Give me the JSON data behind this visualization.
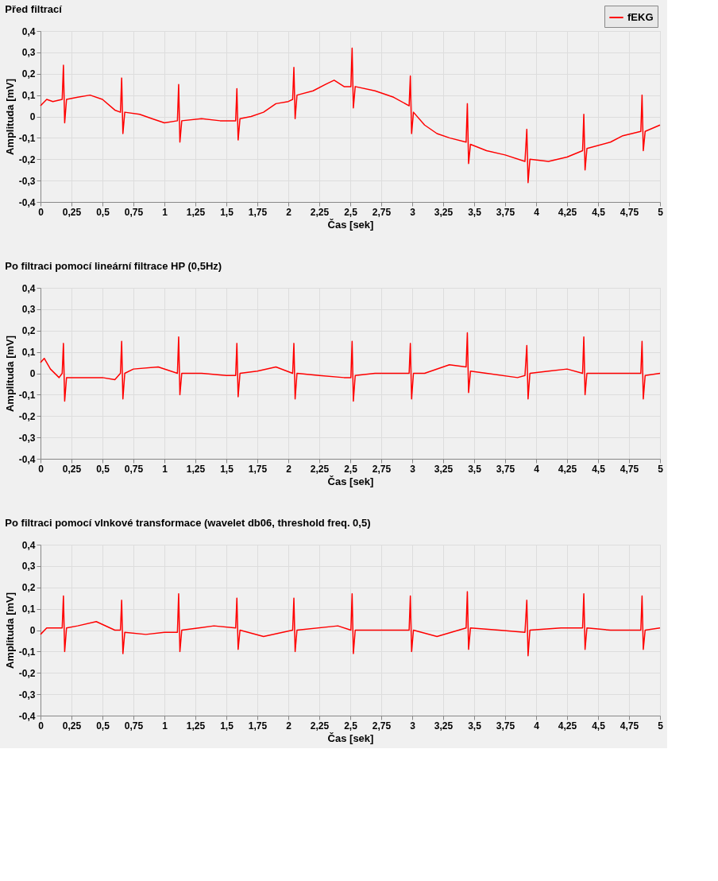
{
  "chart_data": [
    {
      "type": "line",
      "title": "Před filtrací",
      "xlabel": "Čas [sek]",
      "ylabel": "Amplituda [mV]",
      "legend": "top right",
      "grid": true,
      "line_style": "solid",
      "marker": "none",
      "xlim": [
        0,
        5
      ],
      "ylim": [
        -0.4,
        0.4
      ],
      "xticks": [
        0,
        {
          "value": 0.25,
          "label": "0,25"
        },
        {
          "value": 0.5,
          "label": "0,5"
        },
        {
          "value": 0.75,
          "label": "0,75"
        },
        1,
        {
          "value": 1.25,
          "label": "1,25"
        },
        {
          "value": 1.5,
          "label": "1,5"
        },
        {
          "value": 1.75,
          "label": "1,75"
        },
        2,
        {
          "value": 2.25,
          "label": "2,25"
        },
        {
          "value": 2.5,
          "label": "2,5"
        },
        {
          "value": 2.75,
          "label": "2,75"
        },
        3,
        {
          "value": 3.25,
          "label": "3,25"
        },
        {
          "value": 3.5,
          "label": "3,5"
        },
        {
          "value": 3.75,
          "label": "3,75"
        },
        4,
        {
          "value": 4.25,
          "label": "4,25"
        },
        {
          "value": 4.5,
          "label": "4,5"
        },
        {
          "value": 4.75,
          "label": "4,75"
        },
        5
      ],
      "yticks": [
        {
          "value": -0.4,
          "label": "-0,4"
        },
        {
          "value": -0.3,
          "label": "-0,3"
        },
        {
          "value": -0.2,
          "label": "-0,2"
        },
        {
          "value": -0.1,
          "label": "-0,1"
        },
        0,
        {
          "value": 0.1,
          "label": "0,1"
        },
        {
          "value": 0.2,
          "label": "0,2"
        },
        {
          "value": 0.3,
          "label": "0,3"
        },
        {
          "value": 0.4,
          "label": "0,4"
        }
      ],
      "series": [
        {
          "name": "fEKG",
          "color": "#ff0000",
          "x": [
            0,
            0.05,
            0.1,
            0.175,
            0.185,
            0.195,
            0.21,
            0.3,
            0.4,
            0.5,
            0.6,
            0.645,
            0.655,
            0.665,
            0.68,
            0.8,
            0.9,
            1.0,
            1.105,
            1.115,
            1.125,
            1.14,
            1.3,
            1.45,
            1.575,
            1.585,
            1.595,
            1.61,
            1.7,
            1.8,
            1.9,
            2.0,
            2.035,
            2.045,
            2.055,
            2.07,
            2.2,
            2.3,
            2.37,
            2.45,
            2.505,
            2.515,
            2.525,
            2.54,
            2.7,
            2.85,
            2.975,
            2.985,
            2.995,
            3.01,
            3.1,
            3.2,
            3.3,
            3.435,
            3.445,
            3.455,
            3.47,
            3.6,
            3.75,
            3.91,
            3.925,
            3.935,
            3.95,
            4.1,
            4.25,
            4.375,
            4.385,
            4.395,
            4.41,
            4.6,
            4.7,
            4.845,
            4.855,
            4.865,
            4.88,
            5.0
          ],
          "values": [
            0.05,
            0.08,
            0.07,
            0.08,
            0.24,
            -0.03,
            0.08,
            0.09,
            0.1,
            0.08,
            0.03,
            0.02,
            0.18,
            -0.08,
            0.02,
            0.01,
            -0.01,
            -0.03,
            -0.02,
            0.15,
            -0.12,
            -0.02,
            -0.01,
            -0.02,
            -0.02,
            0.13,
            -0.11,
            -0.01,
            0.0,
            0.02,
            0.06,
            0.07,
            0.08,
            0.23,
            -0.01,
            0.1,
            0.12,
            0.15,
            0.17,
            0.14,
            0.14,
            0.32,
            0.04,
            0.14,
            0.12,
            0.09,
            0.05,
            0.19,
            -0.08,
            0.02,
            -0.04,
            -0.08,
            -0.1,
            -0.12,
            0.06,
            -0.22,
            -0.13,
            -0.16,
            -0.18,
            -0.21,
            -0.06,
            -0.31,
            -0.2,
            -0.21,
            -0.19,
            -0.16,
            0.01,
            -0.25,
            -0.15,
            -0.12,
            -0.09,
            -0.07,
            0.1,
            -0.16,
            -0.07,
            -0.04
          ]
        }
      ]
    },
    {
      "type": "line",
      "title": "Po filtraci pomocí lineární filtrace HP (0,5Hz)",
      "xlabel": "Čas [sek]",
      "ylabel": "Amplituda [mV]",
      "legend": "top right",
      "grid": true,
      "line_style": "solid",
      "marker": "none",
      "xlim": [
        0,
        5
      ],
      "ylim": [
        -0.4,
        0.4
      ],
      "xticks": [
        0,
        {
          "value": 0.25,
          "label": "0,25"
        },
        {
          "value": 0.5,
          "label": "0,5"
        },
        {
          "value": 0.75,
          "label": "0,75"
        },
        1,
        {
          "value": 1.25,
          "label": "1,25"
        },
        {
          "value": 1.5,
          "label": "1,5"
        },
        {
          "value": 1.75,
          "label": "1,75"
        },
        2,
        {
          "value": 2.25,
          "label": "2,25"
        },
        {
          "value": 2.5,
          "label": "2,5"
        },
        {
          "value": 2.75,
          "label": "2,75"
        },
        3,
        {
          "value": 3.25,
          "label": "3,25"
        },
        {
          "value": 3.5,
          "label": "3,5"
        },
        {
          "value": 3.75,
          "label": "3,75"
        },
        4,
        {
          "value": 4.25,
          "label": "4,25"
        },
        {
          "value": 4.5,
          "label": "4,5"
        },
        {
          "value": 4.75,
          "label": "4,75"
        },
        5
      ],
      "yticks": [
        {
          "value": -0.4,
          "label": "-0,4"
        },
        {
          "value": -0.3,
          "label": "-0,3"
        },
        {
          "value": -0.2,
          "label": "-0,2"
        },
        {
          "value": -0.1,
          "label": "-0,1"
        },
        0,
        {
          "value": 0.1,
          "label": "0,1"
        },
        {
          "value": 0.2,
          "label": "0,2"
        },
        {
          "value": 0.3,
          "label": "0,3"
        },
        {
          "value": 0.4,
          "label": "0,4"
        }
      ],
      "series": [
        {
          "name": "fEKG",
          "color": "#ff0000",
          "x": [
            0,
            0.03,
            0.08,
            0.15,
            0.175,
            0.185,
            0.195,
            0.21,
            0.3,
            0.5,
            0.6,
            0.645,
            0.655,
            0.665,
            0.68,
            0.75,
            0.95,
            1.105,
            1.115,
            1.125,
            1.14,
            1.3,
            1.5,
            1.575,
            1.585,
            1.595,
            1.61,
            1.75,
            1.9,
            2.035,
            2.045,
            2.055,
            2.07,
            2.25,
            2.45,
            2.505,
            2.515,
            2.525,
            2.54,
            2.7,
            2.9,
            2.975,
            2.985,
            2.995,
            3.01,
            3.1,
            3.3,
            3.435,
            3.445,
            3.455,
            3.47,
            3.6,
            3.85,
            3.91,
            3.925,
            3.935,
            3.95,
            4.1,
            4.25,
            4.375,
            4.385,
            4.395,
            4.41,
            4.5,
            4.7,
            4.845,
            4.855,
            4.865,
            4.88,
            5.0
          ],
          "values": [
            0.05,
            0.07,
            0.02,
            -0.02,
            0.0,
            0.14,
            -0.13,
            -0.02,
            -0.02,
            -0.02,
            -0.03,
            0.0,
            0.15,
            -0.12,
            0.0,
            0.02,
            0.03,
            0.0,
            0.17,
            -0.1,
            0.0,
            0.0,
            -0.01,
            -0.01,
            0.14,
            -0.11,
            0.0,
            0.01,
            0.03,
            0.0,
            0.14,
            -0.12,
            0.0,
            -0.01,
            -0.02,
            -0.02,
            0.15,
            -0.13,
            -0.01,
            0.0,
            0.0,
            0.0,
            0.14,
            -0.12,
            0.0,
            0.0,
            0.04,
            0.03,
            0.19,
            -0.09,
            0.01,
            0.0,
            -0.02,
            -0.01,
            0.13,
            -0.12,
            0.0,
            0.01,
            0.02,
            0.0,
            0.17,
            -0.1,
            0.0,
            0.0,
            0.0,
            0.0,
            0.15,
            -0.12,
            -0.01,
            0.0
          ]
        }
      ]
    },
    {
      "type": "line",
      "title": "Po filtraci pomocí vlnkové transformace (wavelet db06, threshold freq. 0,5)",
      "xlabel": "Čas [sek]",
      "ylabel": "Amplituda [mV]",
      "legend": "top right",
      "grid": true,
      "line_style": "solid",
      "marker": "none",
      "xlim": [
        0,
        5
      ],
      "ylim": [
        -0.4,
        0.4
      ],
      "xticks": [
        0,
        {
          "value": 0.25,
          "label": "0,25"
        },
        {
          "value": 0.5,
          "label": "0,5"
        },
        {
          "value": 0.75,
          "label": "0,75"
        },
        1,
        {
          "value": 1.25,
          "label": "1,25"
        },
        {
          "value": 1.5,
          "label": "1,5"
        },
        {
          "value": 1.75,
          "label": "1,75"
        },
        2,
        {
          "value": 2.25,
          "label": "2,25"
        },
        {
          "value": 2.5,
          "label": "2,5"
        },
        {
          "value": 2.75,
          "label": "2,75"
        },
        3,
        {
          "value": 3.25,
          "label": "3,25"
        },
        {
          "value": 3.5,
          "label": "3,5"
        },
        {
          "value": 3.75,
          "label": "3,75"
        },
        4,
        {
          "value": 4.25,
          "label": "4,25"
        },
        {
          "value": 4.5,
          "label": "4,5"
        },
        {
          "value": 4.75,
          "label": "4,75"
        },
        5
      ],
      "yticks": [
        {
          "value": -0.4,
          "label": "-0,4"
        },
        {
          "value": -0.3,
          "label": "-0,3"
        },
        {
          "value": -0.2,
          "label": "-0,2"
        },
        {
          "value": -0.1,
          "label": "-0,1"
        },
        0,
        {
          "value": 0.1,
          "label": "0,1"
        },
        {
          "value": 0.2,
          "label": "0,2"
        },
        {
          "value": 0.3,
          "label": "0,3"
        },
        {
          "value": 0.4,
          "label": "0,4"
        }
      ],
      "series": [
        {
          "name": "fEKG",
          "color": "#ff0000",
          "x": [
            0,
            0.05,
            0.175,
            0.185,
            0.195,
            0.21,
            0.3,
            0.45,
            0.6,
            0.645,
            0.655,
            0.665,
            0.68,
            0.85,
            1.0,
            1.105,
            1.115,
            1.125,
            1.14,
            1.4,
            1.575,
            1.585,
            1.595,
            1.61,
            1.8,
            2.035,
            2.045,
            2.055,
            2.07,
            2.4,
            2.505,
            2.515,
            2.525,
            2.54,
            2.75,
            2.975,
            2.985,
            2.995,
            3.01,
            3.2,
            3.435,
            3.445,
            3.455,
            3.47,
            3.7,
            3.91,
            3.925,
            3.935,
            3.95,
            4.2,
            4.375,
            4.385,
            4.395,
            4.41,
            4.6,
            4.845,
            4.855,
            4.865,
            4.88,
            5.0
          ],
          "values": [
            -0.02,
            0.01,
            0.01,
            0.16,
            -0.1,
            0.01,
            0.02,
            0.04,
            0.0,
            0.0,
            0.14,
            -0.11,
            -0.01,
            -0.02,
            -0.01,
            -0.01,
            0.17,
            -0.1,
            0.0,
            0.02,
            0.01,
            0.15,
            -0.09,
            0.0,
            -0.03,
            0.0,
            0.15,
            -0.1,
            0.0,
            0.02,
            0.0,
            0.17,
            -0.11,
            0.0,
            0.0,
            0.0,
            0.16,
            -0.1,
            0.0,
            -0.03,
            0.01,
            0.18,
            -0.09,
            0.01,
            0.0,
            -0.01,
            0.14,
            -0.12,
            0.0,
            0.01,
            0.01,
            0.17,
            -0.09,
            0.01,
            0.0,
            0.0,
            0.16,
            -0.09,
            0.0,
            0.01
          ]
        }
      ]
    }
  ]
}
